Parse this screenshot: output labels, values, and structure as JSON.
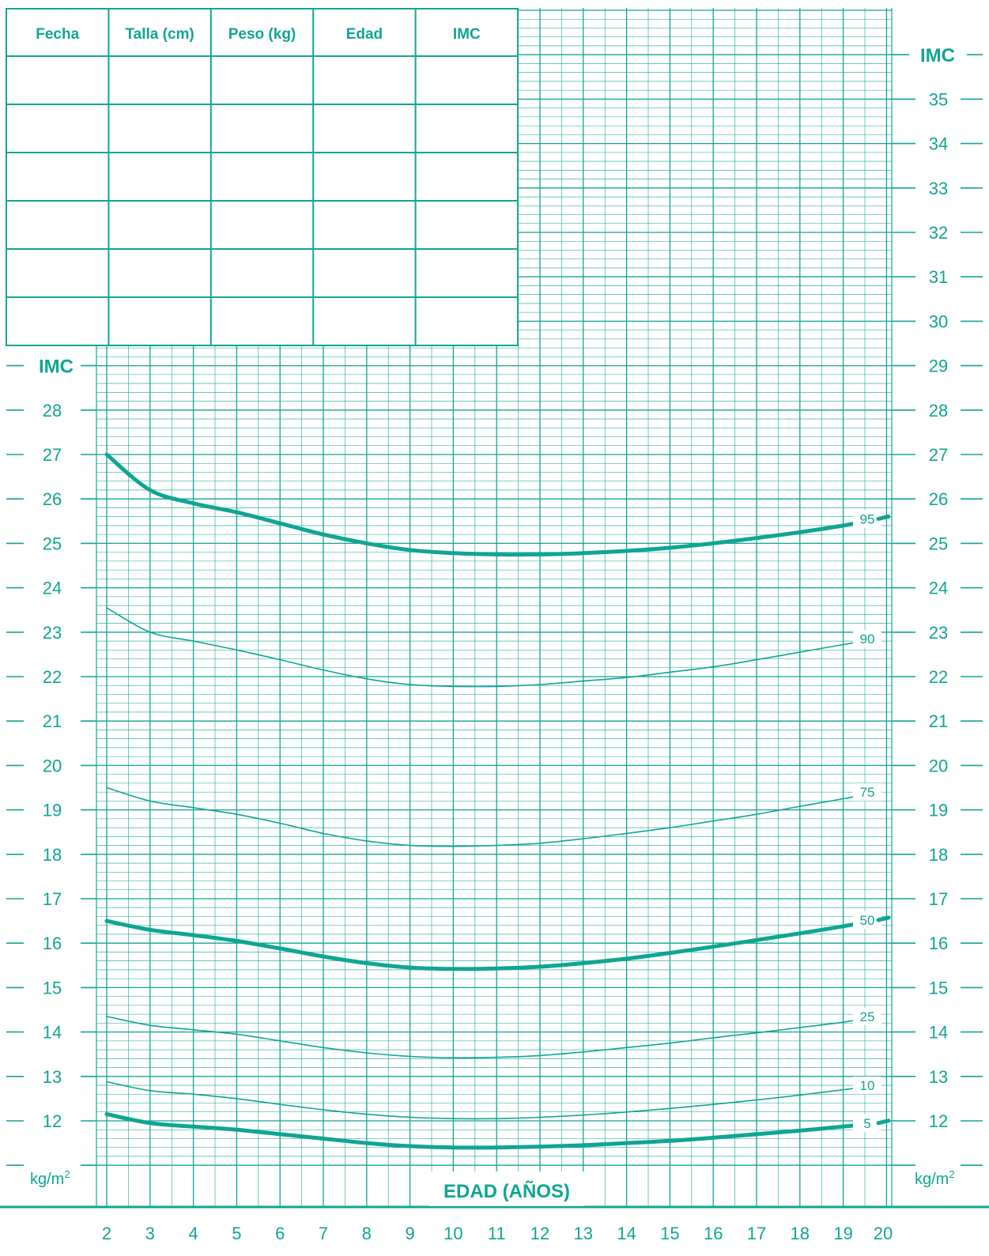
{
  "table": {
    "headers": [
      "Fecha",
      "Talla (cm)",
      "Peso (kg)",
      "Edad",
      "IMC"
    ],
    "rows": 6
  },
  "axis": {
    "left_title": "IMC",
    "right_title": "IMC",
    "left_unit": "kg/m",
    "right_unit": "kg/m",
    "unit_superscript": "2",
    "x_title": "EDAD (AÑOS)",
    "x_ticks": [
      "2",
      "3",
      "4",
      "5",
      "6",
      "7",
      "8",
      "9",
      "10",
      "11",
      "12",
      "13",
      "14",
      "15",
      "16",
      "17",
      "18",
      "19",
      "20"
    ],
    "left_ticks": [
      "12",
      "13",
      "14",
      "15",
      "16",
      "17",
      "18",
      "19",
      "20",
      "21",
      "22",
      "23",
      "24",
      "25",
      "26",
      "27",
      "28"
    ],
    "right_ticks": [
      "12",
      "13",
      "14",
      "15",
      "16",
      "17",
      "18",
      "19",
      "20",
      "21",
      "22",
      "23",
      "24",
      "25",
      "26",
      "27",
      "28",
      "29",
      "30",
      "31",
      "32",
      "33",
      "34",
      "35"
    ]
  },
  "colors": {
    "accent": "#10a593",
    "background": "#ffffff"
  },
  "chart_data": {
    "type": "line",
    "xlabel": "EDAD (AÑOS)",
    "ylabel": "IMC",
    "xlim": [
      2,
      20
    ],
    "ylim": [
      11,
      36
    ],
    "grid": true,
    "x": [
      2,
      3,
      4,
      5,
      6,
      7,
      8,
      9,
      10,
      11,
      12,
      13,
      14,
      15,
      16,
      17,
      18,
      19,
      19.8
    ],
    "series": [
      {
        "name": "95",
        "bold": true,
        "values": [
          27.0,
          26.2,
          25.9,
          25.7,
          25.45,
          25.2,
          25.0,
          24.85,
          24.78,
          24.75,
          24.75,
          24.78,
          24.83,
          24.9,
          25.0,
          25.12,
          25.25,
          25.4,
          25.55
        ]
      },
      {
        "name": "90",
        "bold": false,
        "values": [
          23.55,
          23.0,
          22.8,
          22.6,
          22.38,
          22.15,
          21.95,
          21.82,
          21.78,
          21.78,
          21.82,
          21.9,
          21.98,
          22.1,
          22.22,
          22.38,
          22.55,
          22.72,
          22.85
        ]
      },
      {
        "name": "75",
        "bold": false,
        "values": [
          19.5,
          19.2,
          19.05,
          18.9,
          18.7,
          18.47,
          18.3,
          18.2,
          18.18,
          18.2,
          18.25,
          18.35,
          18.47,
          18.6,
          18.75,
          18.9,
          19.08,
          19.25,
          19.4
        ]
      },
      {
        "name": "50",
        "bold": true,
        "values": [
          16.5,
          16.3,
          16.18,
          16.05,
          15.88,
          15.7,
          15.55,
          15.45,
          15.42,
          15.43,
          15.47,
          15.55,
          15.65,
          15.78,
          15.92,
          16.07,
          16.22,
          16.38,
          16.52
        ]
      },
      {
        "name": "25",
        "bold": false,
        "values": [
          14.35,
          14.15,
          14.05,
          13.95,
          13.8,
          13.65,
          13.53,
          13.45,
          13.42,
          13.43,
          13.47,
          13.55,
          13.65,
          13.75,
          13.87,
          13.98,
          14.1,
          14.22,
          14.35
        ]
      },
      {
        "name": "10",
        "bold": false,
        "values": [
          12.88,
          12.68,
          12.6,
          12.5,
          12.37,
          12.25,
          12.15,
          12.08,
          12.05,
          12.05,
          12.08,
          12.13,
          12.2,
          12.28,
          12.37,
          12.47,
          12.58,
          12.7,
          12.8
        ]
      },
      {
        "name": "5",
        "bold": true,
        "values": [
          12.15,
          11.95,
          11.87,
          11.8,
          11.7,
          11.6,
          11.5,
          11.43,
          11.4,
          11.4,
          11.42,
          11.45,
          11.5,
          11.55,
          11.62,
          11.7,
          11.78,
          11.87,
          11.95
        ]
      }
    ]
  }
}
